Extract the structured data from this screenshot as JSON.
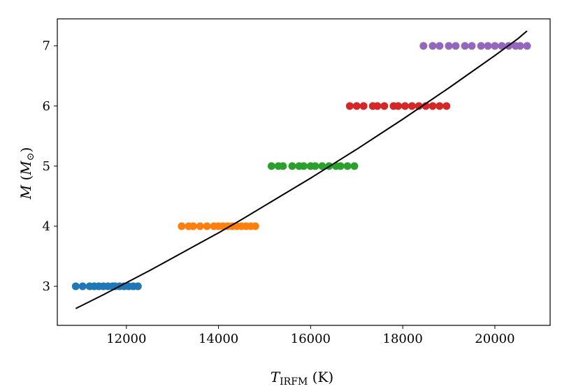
{
  "chart_data": {
    "type": "scatter",
    "xlabel": {
      "var": "T",
      "sub": "IRFM",
      "unit": " (K)"
    },
    "ylabel": {
      "var": "M",
      "open": " (",
      "sym": "M",
      "sub": "⊙",
      "close": ")"
    },
    "xlim": [
      10500,
      21200
    ],
    "ylim": [
      2.35,
      7.45
    ],
    "xticks": [
      12000,
      14000,
      16000,
      18000,
      20000
    ],
    "yticks": [
      3,
      4,
      5,
      6,
      7
    ],
    "grid": false,
    "series": [
      {
        "color": "#1f77b4",
        "y": 3,
        "x": [
          10900,
          11050,
          11200,
          11300,
          11400,
          11500,
          11600,
          11700,
          11750,
          11850,
          11950,
          12050,
          12150,
          12250
        ]
      },
      {
        "color": "#ff7f0e",
        "y": 4,
        "x": [
          13200,
          13350,
          13450,
          13600,
          13750,
          13900,
          14000,
          14100,
          14200,
          14300,
          14400,
          14500,
          14600,
          14700,
          14800
        ]
      },
      {
        "color": "#2ca02c",
        "y": 5,
        "x": [
          15150,
          15300,
          15400,
          15600,
          15750,
          15850,
          16000,
          16100,
          16250,
          16400,
          16550,
          16650,
          16800,
          16950
        ]
      },
      {
        "color": "#d62728",
        "y": 6,
        "x": [
          16850,
          17000,
          17150,
          17350,
          17450,
          17600,
          17800,
          17900,
          18050,
          18200,
          18350,
          18500,
          18650,
          18800,
          18950
        ]
      },
      {
        "color": "#9467bd",
        "y": 7,
        "x": [
          18450,
          18650,
          18800,
          19000,
          19150,
          19350,
          19500,
          19700,
          19850,
          20000,
          20150,
          20300,
          20450,
          20550,
          20700
        ]
      }
    ],
    "fit_line": {
      "color": "#000000",
      "x": [
        10900,
        11500,
        12000,
        12500,
        13000,
        13500,
        14000,
        14500,
        15000,
        15500,
        16000,
        16500,
        17000,
        17500,
        18000,
        18500,
        19000,
        19500,
        20000,
        20500,
        20700
      ],
      "y": [
        2.63,
        2.86,
        3.06,
        3.26,
        3.47,
        3.68,
        3.89,
        4.11,
        4.34,
        4.57,
        4.8,
        5.04,
        5.28,
        5.53,
        5.78,
        6.04,
        6.3,
        6.57,
        6.84,
        7.12,
        7.25
      ]
    }
  }
}
